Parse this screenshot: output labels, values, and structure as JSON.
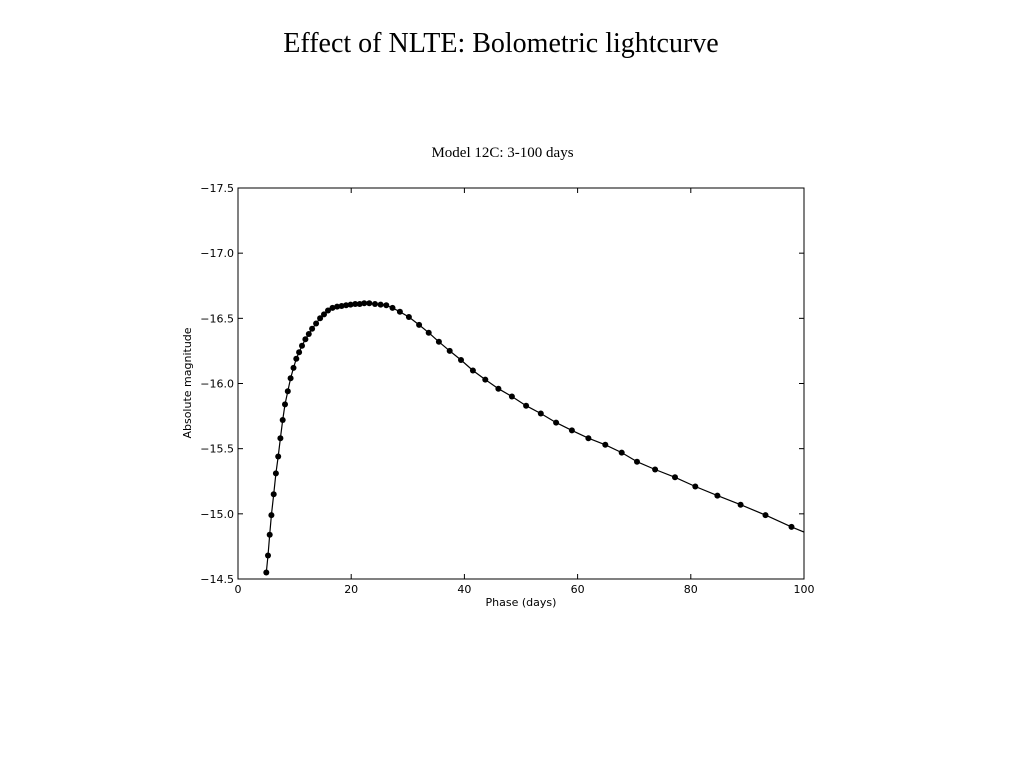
{
  "slide": {
    "title": "Effect of NLTE: Bolometric lightcurve"
  },
  "chart_data": {
    "type": "line",
    "title": "Model 12C: 3-100 days",
    "xlabel": "Phase (days)",
    "ylabel": "Absolute magnitude",
    "xlim": [
      0,
      100
    ],
    "ylim": [
      -14.5,
      -17.5
    ],
    "y_inverted": true,
    "grid": false,
    "marker": "circle",
    "line_color": "#000000",
    "x_ticks": [
      0,
      20,
      40,
      60,
      80,
      100
    ],
    "x_tick_labels": [
      "0",
      "20",
      "40",
      "60",
      "80",
      "100"
    ],
    "y_ticks": [
      -14.5,
      -15.0,
      -15.5,
      -16.0,
      -16.5,
      -17.0,
      -17.5
    ],
    "y_tick_labels": [
      "−14.5",
      "−15.0",
      "−15.5",
      "−16.0",
      "−16.5",
      "−17.0",
      "−17.5"
    ],
    "series": [
      {
        "x": [
          5.0,
          5.3,
          5.6,
          5.9,
          6.3,
          6.7,
          7.1,
          7.5,
          7.9,
          8.3,
          8.8,
          9.3,
          9.8,
          10.3,
          10.8,
          11.3,
          11.9,
          12.5,
          13.1,
          13.8,
          14.5,
          15.2,
          15.9,
          16.7,
          17.5,
          18.3,
          19.1,
          19.9,
          20.7,
          21.5,
          22.3,
          23.2,
          24.2,
          25.2,
          26.2,
          27.3,
          28.6,
          30.2,
          32.0,
          33.7,
          35.5,
          37.4,
          39.4,
          41.5,
          43.7,
          46.0,
          48.4,
          50.9,
          53.5,
          56.2,
          59.0,
          61.9,
          64.9,
          67.8,
          70.5,
          73.7,
          77.2,
          80.8,
          84.7,
          88.8,
          93.2,
          97.8,
          100.0
        ],
        "y": [
          -14.55,
          -14.68,
          -14.84,
          -14.99,
          -15.15,
          -15.31,
          -15.44,
          -15.58,
          -15.72,
          -15.84,
          -15.94,
          -16.04,
          -16.12,
          -16.19,
          -16.24,
          -16.29,
          -16.34,
          -16.38,
          -16.42,
          -16.46,
          -16.5,
          -16.53,
          -16.56,
          -16.58,
          -16.59,
          -16.595,
          -16.6,
          -16.605,
          -16.61,
          -16.61,
          -16.615,
          -16.615,
          -16.61,
          -16.605,
          -16.6,
          -16.58,
          -16.55,
          -16.51,
          -16.45,
          -16.39,
          -16.32,
          -16.25,
          -16.18,
          -16.1,
          -16.03,
          -15.96,
          -15.9,
          -15.83,
          -15.77,
          -15.7,
          -15.64,
          -15.58,
          -15.53,
          -15.47,
          -15.4,
          -15.34,
          -15.28,
          -15.21,
          -15.14,
          -15.07,
          -14.99,
          -14.9,
          -14.86
        ]
      }
    ]
  }
}
